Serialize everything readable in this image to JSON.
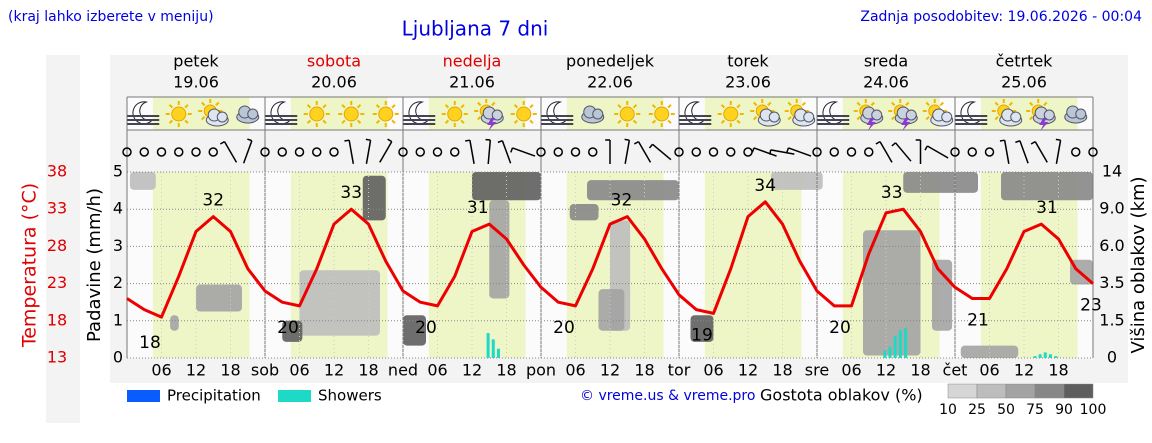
{
  "chart_data": {
    "type": "line",
    "title": "Ljubljana 7 dni",
    "note": "(kraj lahko izberete v meniju)",
    "updated": "Zadnja posodobitev: 19.06.2026 - 00:04",
    "credit": "© vreme.us & vreme.pro",
    "days": [
      {
        "name": "petek",
        "date": "19.06",
        "color": "#000000"
      },
      {
        "name": "sobota",
        "date": "20.06",
        "color": "#e00000"
      },
      {
        "name": "nedelja",
        "date": "21.06",
        "color": "#e00000"
      },
      {
        "name": "ponedeljek",
        "date": "22.06",
        "color": "#000000"
      },
      {
        "name": "torek",
        "date": "23.06",
        "color": "#000000"
      },
      {
        "name": "sreda",
        "date": "24.06",
        "color": "#000000"
      },
      {
        "name": "četrtek",
        "date": "25.06",
        "color": "#000000"
      }
    ],
    "xlim": [
      0,
      168
    ],
    "xticks": [
      {
        "value": 6,
        "label": "06"
      },
      {
        "value": 12,
        "label": "12"
      },
      {
        "value": 18,
        "label": "18"
      },
      {
        "value": 24,
        "label": "sob"
      },
      {
        "value": 30,
        "label": "06"
      },
      {
        "value": 36,
        "label": "12"
      },
      {
        "value": 42,
        "label": "18"
      },
      {
        "value": 48,
        "label": "ned"
      },
      {
        "value": 54,
        "label": "06"
      },
      {
        "value": 60,
        "label": "12"
      },
      {
        "value": 66,
        "label": "18"
      },
      {
        "value": 72,
        "label": "pon"
      },
      {
        "value": 78,
        "label": "06"
      },
      {
        "value": 84,
        "label": "12"
      },
      {
        "value": 90,
        "label": "18"
      },
      {
        "value": 96,
        "label": "tor"
      },
      {
        "value": 102,
        "label": "06"
      },
      {
        "value": 108,
        "label": "12"
      },
      {
        "value": 114,
        "label": "18"
      },
      {
        "value": 120,
        "label": "sre"
      },
      {
        "value": 126,
        "label": "06"
      },
      {
        "value": 132,
        "label": "12"
      },
      {
        "value": 138,
        "label": "18"
      },
      {
        "value": 144,
        "label": "čet"
      },
      {
        "value": 150,
        "label": "06"
      },
      {
        "value": 156,
        "label": "12"
      },
      {
        "value": 162,
        "label": "18"
      }
    ],
    "daylight_hours": [
      4.5,
      21.3
    ],
    "ylabel": "Padavine (mm/h)",
    "ylim": [
      0,
      5
    ],
    "yticks": [
      0,
      1,
      2,
      3,
      4,
      5
    ],
    "y2label": "Višina oblakov (km)",
    "y2lim": [
      0,
      14
    ],
    "y2ticks": [
      0,
      1.5,
      3.5,
      {
        "value": 6,
        "label": "6.0"
      },
      {
        "value": 9,
        "label": "9.0"
      },
      14
    ],
    "temp_axis": {
      "label": "Temperatura (°C)",
      "lim": [
        13,
        38
      ],
      "ticks": [
        13,
        18,
        23,
        28,
        33,
        38
      ],
      "color": "#e00000"
    },
    "temperature": {
      "color": "#ee0000",
      "x": [
        0,
        3,
        6,
        9,
        12,
        15,
        18,
        21,
        24,
        27,
        30,
        33,
        36,
        39,
        42,
        45,
        48,
        51,
        54,
        57,
        60,
        63,
        66,
        69,
        72,
        75,
        78,
        81,
        84,
        87,
        90,
        93,
        96,
        99,
        102,
        105,
        108,
        111,
        114,
        117,
        120,
        123,
        126,
        129,
        132,
        135,
        138,
        141,
        144,
        147,
        150,
        153,
        156,
        159,
        162,
        165,
        168
      ],
      "values": [
        21,
        19.5,
        18.5,
        24,
        30,
        32,
        30,
        25,
        22,
        20.5,
        20,
        25,
        31,
        33,
        31,
        26,
        22,
        20.5,
        20,
        24,
        30,
        31,
        29,
        25.5,
        22.5,
        20.5,
        20,
        25,
        31,
        32,
        29,
        25,
        21.5,
        19.5,
        19,
        25,
        32,
        34,
        31,
        26,
        22,
        20,
        20,
        27,
        32.5,
        33,
        30,
        25,
        22.5,
        21,
        21,
        25,
        30,
        31,
        29,
        25,
        23
      ]
    },
    "temp_labels": {
      "x": [
        4,
        15,
        28,
        39,
        52,
        61,
        76,
        86,
        100,
        111,
        124,
        133,
        148,
        160,
        168
      ],
      "values": [
        18,
        32,
        20,
        33,
        20,
        31,
        20,
        32,
        19,
        34,
        20,
        33,
        21,
        31,
        23
      ]
    },
    "series": [
      {
        "name": "Precipitation",
        "color": "#0a5cff",
        "x": [],
        "values": []
      },
      {
        "name": "Showers",
        "color": "#1dd9c6",
        "x": [
          62.8,
          63.7,
          64.6,
          131.8,
          132.7,
          133.6,
          134.5,
          135.4,
          157.9,
          158.8,
          159.7,
          160.6,
          161.5
        ],
        "values": [
          0.67,
          0.5,
          0.25,
          0.2,
          0.3,
          0.6,
          0.75,
          0.8,
          0.05,
          0.1,
          0.15,
          0.1,
          0.05
        ]
      }
    ],
    "clouds": [
      {
        "x": [
          0.5,
          5
        ],
        "base": 11.6,
        "top": 14,
        "density": 40
      },
      {
        "x": [
          12,
          20
        ],
        "base": 2.0,
        "top": 3.45,
        "density": 50
      },
      {
        "x": [
          7.5,
          9
        ],
        "base": 1.1,
        "top": 1.8,
        "density": 60
      },
      {
        "x": [
          30,
          44
        ],
        "base": 0.9,
        "top": 4.4,
        "density": 40
      },
      {
        "x": [
          41,
          45
        ],
        "base": 8.1,
        "top": 13.5,
        "density": 90
      },
      {
        "x": [
          27,
          30.5
        ],
        "base": 0.65,
        "top": 1.5,
        "density": 90
      },
      {
        "x": [
          60,
          72
        ],
        "base": 10.2,
        "top": 14,
        "density": 90
      },
      {
        "x": [
          63,
          66.5
        ],
        "base": 2.7,
        "top": 10.2,
        "density": 50
      },
      {
        "x": [
          48,
          52
        ],
        "base": 0.5,
        "top": 1.8,
        "density": 90
      },
      {
        "x": [
          77,
          82
        ],
        "base": 8.1,
        "top": 9.7,
        "density": 80
      },
      {
        "x": [
          80,
          96
        ],
        "base": 10.2,
        "top": 12.9,
        "density": 85
      },
      {
        "x": [
          84,
          87.5
        ],
        "base": 1.1,
        "top": 8.1,
        "density": 40
      },
      {
        "x": [
          82,
          86.5
        ],
        "base": 1.1,
        "top": 3.2,
        "density": 50
      },
      {
        "x": [
          98,
          102
        ],
        "base": 0.65,
        "top": 1.8,
        "density": 90
      },
      {
        "x": [
          112,
          121
        ],
        "base": 11.6,
        "top": 14,
        "density": 30
      },
      {
        "x": [
          128,
          138
        ],
        "base": 0.1,
        "top": 7.3,
        "density": 50
      },
      {
        "x": [
          135,
          148
        ],
        "base": 11.2,
        "top": 14,
        "density": 85
      },
      {
        "x": [
          140,
          143.5
        ],
        "base": 1.1,
        "top": 5.1,
        "density": 60
      },
      {
        "x": [
          145,
          155
        ],
        "base": 0,
        "top": 0.5,
        "density": 50
      },
      {
        "x": [
          152,
          168
        ],
        "base": 10.2,
        "top": 14,
        "density": 85
      },
      {
        "x": [
          164,
          168
        ],
        "base": 3.45,
        "top": 5.1,
        "density": 70
      }
    ],
    "cloud_legend": {
      "title": "Gostota oblakov (%)",
      "ticks": [
        10,
        25,
        50,
        75,
        90,
        100
      ],
      "colors": [
        "#d6d6d6",
        "#bdbdbd",
        "#a3a3a3",
        "#878787",
        "#5e5e5e"
      ]
    },
    "icons": [
      [
        "moon",
        "sun",
        "suncloud",
        "cloud"
      ],
      [
        "moon",
        "sun",
        "sun",
        "sun"
      ],
      [
        "moon",
        "sun",
        "storm",
        "sun"
      ],
      [
        "moon",
        "cloud",
        "sun",
        "sun"
      ],
      [
        "moon",
        "sun",
        "suncloud",
        "suncloud"
      ],
      [
        "moon",
        "storm",
        "storm",
        "suncloud"
      ],
      [
        "moon",
        "suncloud",
        "storm",
        "cloud"
      ]
    ],
    "wind": [
      null,
      null,
      null,
      null,
      null,
      null,
      60,
      110,
      null,
      null,
      null,
      null,
      null,
      80,
      100,
      120,
      null,
      null,
      null,
      null,
      80,
      95,
      70,
      20,
      null,
      null,
      null,
      null,
      90,
      100,
      60,
      40,
      null,
      null,
      null,
      null,
      null,
      20,
      10,
      20,
      null,
      null,
      null,
      null,
      60,
      50,
      90,
      30,
      null,
      null,
      null,
      80,
      70,
      60,
      100,
      null,
      null
    ]
  }
}
